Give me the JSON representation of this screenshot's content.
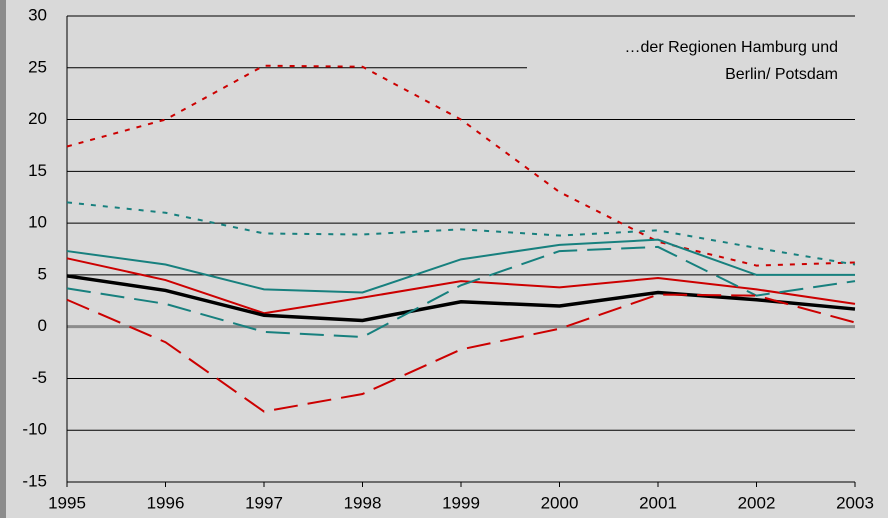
{
  "chart_data": {
    "type": "line",
    "annotation": [
      "…der Regionen Hamburg und",
      "Berlin/ Potsdam"
    ],
    "x": [
      1995,
      1996,
      1997,
      1998,
      1999,
      2000,
      2001,
      2002,
      2003
    ],
    "xlim": [
      1995,
      2003
    ],
    "xticks": [
      1995,
      1996,
      1997,
      1998,
      1999,
      2000,
      2001,
      2002,
      2003
    ],
    "ylim": [
      -15,
      30
    ],
    "yticks": [
      -15,
      -10,
      -5,
      0,
      5,
      10,
      15,
      20,
      25,
      30
    ],
    "grid": true,
    "series": [
      {
        "color": "#cc0000",
        "style": "dotted",
        "linewidth": 2,
        "values": [
          17.4,
          20,
          25.2,
          25.1,
          20,
          13,
          8.2,
          5.9,
          6.2
        ]
      },
      {
        "color": "#17807e",
        "style": "dotted",
        "linewidth": 2,
        "values": [
          12,
          11,
          9,
          8.9,
          9.4,
          8.8,
          9.3,
          7.6,
          6.0
        ]
      },
      {
        "color": "#17807e",
        "style": "solid",
        "linewidth": 2,
        "values": [
          7.3,
          6.0,
          3.6,
          3.3,
          6.5,
          7.9,
          8.4,
          5.0,
          5.0
        ]
      },
      {
        "color": "#cc0000",
        "style": "solid",
        "linewidth": 2,
        "values": [
          6.6,
          4.5,
          1.3,
          2.8,
          4.4,
          3.8,
          4.7,
          3.6,
          2.2
        ]
      },
      {
        "color": "#000000",
        "style": "solid",
        "linewidth": 3.5,
        "values": [
          4.9,
          3.5,
          1.1,
          0.6,
          2.4,
          2.0,
          3.3,
          2.6,
          1.7
        ]
      },
      {
        "color": "#17807e",
        "style": "dashed",
        "linewidth": 2,
        "values": [
          3.7,
          2.2,
          -0.5,
          -1.0,
          4.0,
          7.3,
          7.7,
          3.0,
          4.4
        ]
      },
      {
        "color": "#cc0000",
        "style": "dashed",
        "linewidth": 2,
        "values": [
          2.6,
          -1.5,
          -8.2,
          -6.5,
          -2.2,
          -0.2,
          3.1,
          3.0,
          0.4
        ]
      }
    ]
  }
}
